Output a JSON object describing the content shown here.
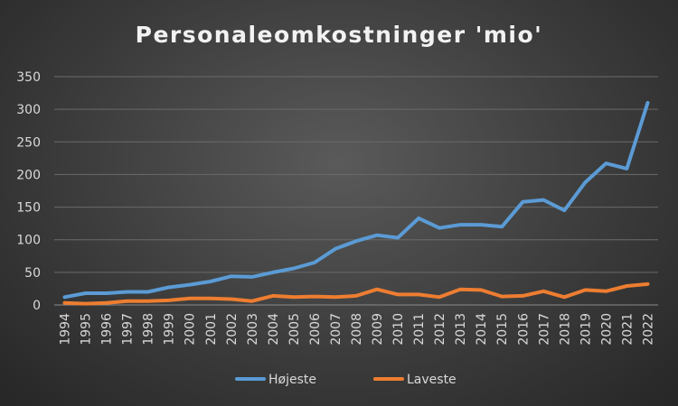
{
  "chart_data": {
    "type": "line",
    "title": "Personaleomkostninger 'mio'",
    "xlabel": "",
    "ylabel": "",
    "ylim": [
      0,
      350
    ],
    "yticks": [
      "0",
      "50",
      "100",
      "150",
      "200",
      "250",
      "300",
      "350"
    ],
    "categories": [
      "1994",
      "1995",
      "1996",
      "1997",
      "1998",
      "1999",
      "2000",
      "2001",
      "2002",
      "2003",
      "2004",
      "2005",
      "2006",
      "2007",
      "2008",
      "2009",
      "2010",
      "2011",
      "2012",
      "2013",
      "2014",
      "2015",
      "2016",
      "2017",
      "2018",
      "2019",
      "2020",
      "2021",
      "2022"
    ],
    "series": [
      {
        "name": "Højeste",
        "color": "#5b9bd5",
        "values": [
          12,
          18,
          18,
          20,
          20,
          27,
          31,
          36,
          44,
          43,
          50,
          56,
          65,
          86,
          98,
          107,
          103,
          133,
          118,
          123,
          123,
          120,
          158,
          161,
          145,
          188,
          217,
          209,
          310
        ]
      },
      {
        "name": "Laveste",
        "color": "#ed7d31",
        "values": [
          3,
          2,
          3,
          6,
          6,
          7,
          10,
          10,
          9,
          6,
          14,
          12,
          13,
          12,
          14,
          24,
          16,
          16,
          12,
          24,
          23,
          13,
          14,
          21,
          12,
          23,
          21,
          29,
          32
        ]
      }
    ],
    "grid": true,
    "legend_position": "bottom"
  }
}
